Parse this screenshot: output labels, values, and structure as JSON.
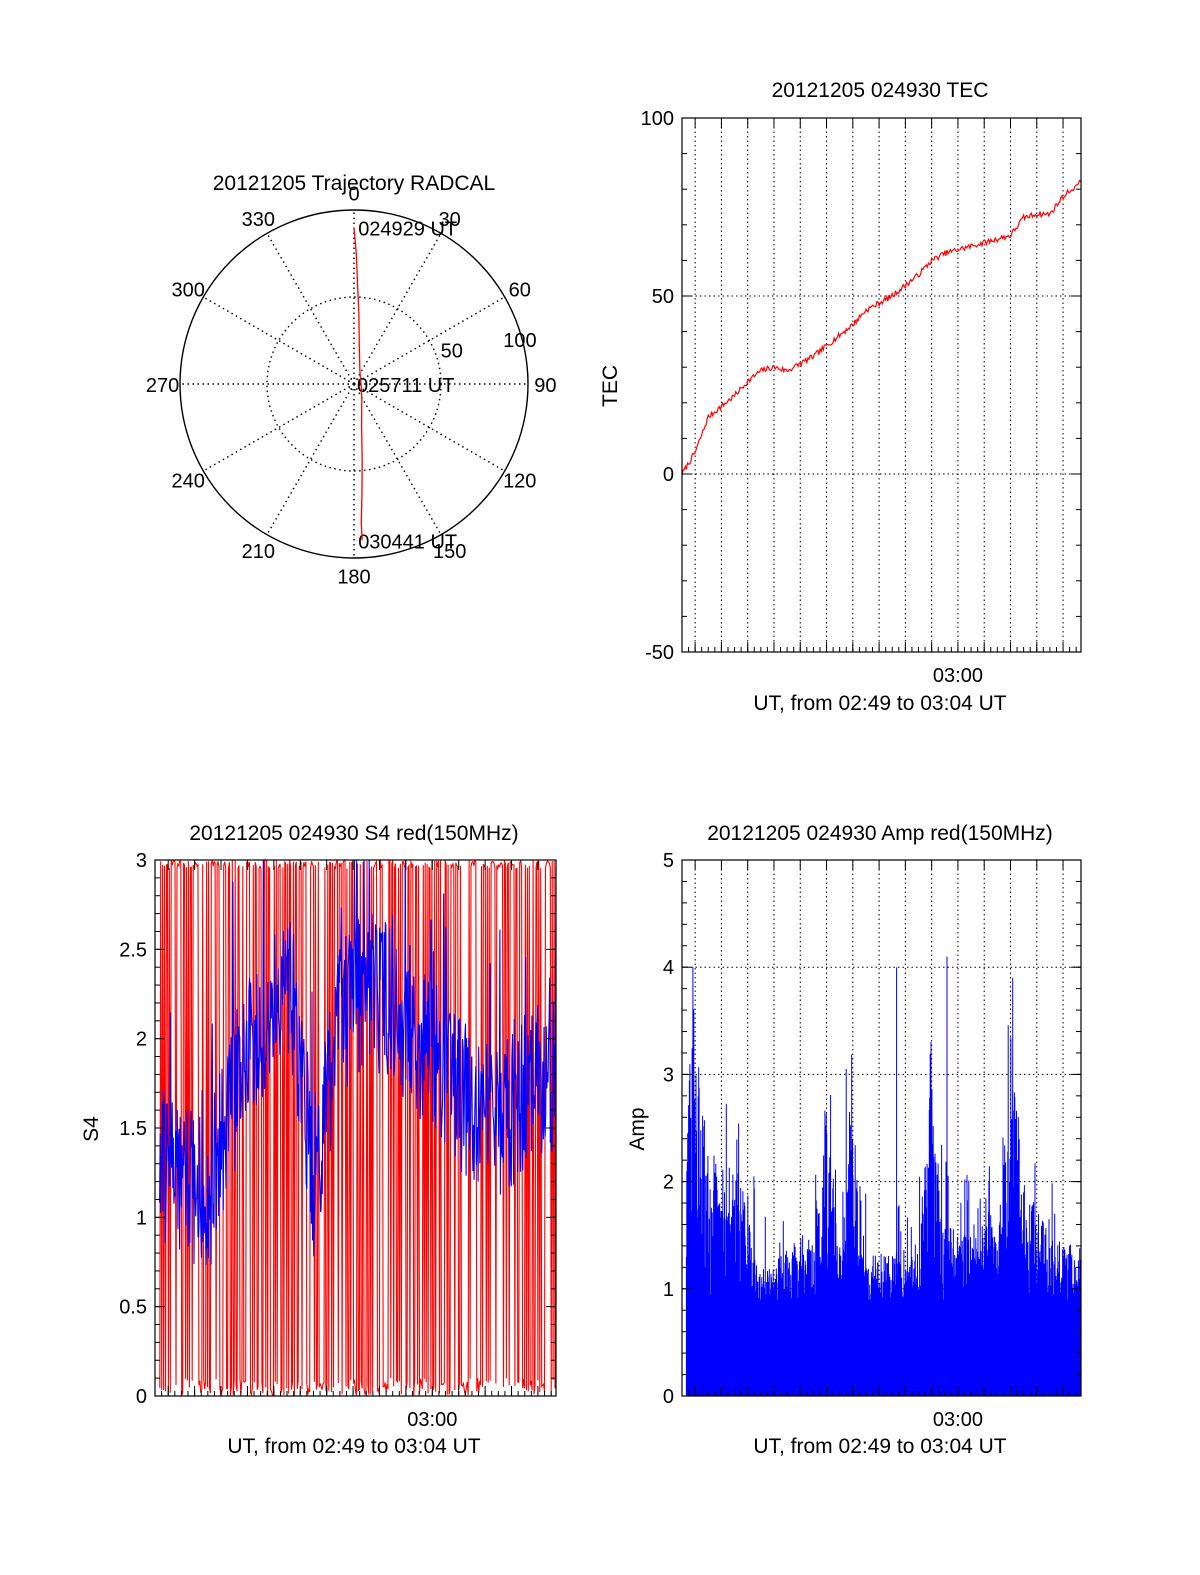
{
  "colors": {
    "red": "#ff0000",
    "blue": "#0000ff",
    "axis": "#000000",
    "grid": "#000000"
  },
  "chart_data": [
    {
      "id": "trajectory",
      "type": "polar",
      "title": "20121205 Trajectory RADCAL",
      "angle_labels": [
        "0",
        "30",
        "60",
        "90",
        "120",
        "150",
        "180",
        "210",
        "240",
        "270",
        "300",
        "330"
      ],
      "radius_labels": [
        "50",
        "100"
      ],
      "rlim": [
        0,
        100
      ],
      "grid": true,
      "series": [
        {
          "color": "#ff0000",
          "points": [
            [
              0,
              90
            ],
            [
              1,
              75
            ],
            [
              2,
              58
            ],
            [
              4,
              40
            ],
            [
              8,
              22
            ],
            [
              25,
              8
            ],
            [
              90,
              4
            ],
            [
              150,
              9
            ],
            [
              170,
              25
            ],
            [
              174,
              45
            ],
            [
              176,
              65
            ],
            [
              177,
              80
            ],
            [
              177,
              90
            ]
          ]
        }
      ],
      "annotations": [
        {
          "text": "024929 UT",
          "angle": 3,
          "r": 90
        },
        {
          "text": "025711 UT",
          "angle": 90,
          "r": 4
        },
        {
          "text": "030441 UT",
          "angle": 177,
          "r": 90
        }
      ]
    },
    {
      "id": "tec",
      "type": "line",
      "title": "20121205 024930 TEC",
      "ylabel": "TEC",
      "xlabel": "UT, from 02:49 to 03:04 UT",
      "xlim": [
        "02:49:30",
        "03:04:41"
      ],
      "ylim": [
        -50,
        100
      ],
      "yticks": [
        "-50",
        "0",
        "50",
        "100"
      ],
      "xtick_labels": [
        {
          "t": "03:00",
          "label": "03:00"
        }
      ],
      "grid": true,
      "series": [
        {
          "color": "#ff0000",
          "points": [
            [
              "02:49:30",
              0
            ],
            [
              "02:50:00",
              6
            ],
            [
              "02:50:30",
              16
            ],
            [
              "02:51:00",
              19
            ],
            [
              "02:51:30",
              22
            ],
            [
              "02:52:00",
              26
            ],
            [
              "02:52:30",
              29
            ],
            [
              "02:53:00",
              30
            ],
            [
              "02:53:30",
              29
            ],
            [
              "02:54:00",
              31
            ],
            [
              "02:54:30",
              33
            ],
            [
              "02:55:00",
              36
            ],
            [
              "02:55:30",
              39
            ],
            [
              "02:56:00",
              42
            ],
            [
              "02:56:30",
              46
            ],
            [
              "02:57:00",
              48
            ],
            [
              "02:57:30",
              50
            ],
            [
              "02:58:00",
              53
            ],
            [
              "02:58:30",
              56
            ],
            [
              "02:59:00",
              60
            ],
            [
              "02:59:30",
              62
            ],
            [
              "03:00:00",
              63
            ],
            [
              "03:00:30",
              64
            ],
            [
              "03:01:00",
              65
            ],
            [
              "03:01:30",
              66
            ],
            [
              "03:02:00",
              67
            ],
            [
              "03:02:30",
              72
            ],
            [
              "03:03:00",
              73
            ],
            [
              "03:03:30",
              73
            ],
            [
              "03:04:00",
              78
            ],
            [
              "03:04:41",
              82
            ]
          ]
        }
      ]
    },
    {
      "id": "s4",
      "type": "line",
      "title": "20121205 024930 S4 red(150MHz)",
      "ylabel": "S4",
      "xlabel": "UT, from 02:49 to 03:04 UT",
      "xlim": [
        "02:49:30",
        "03:04:41"
      ],
      "ylim": [
        0,
        3
      ],
      "yticks": [
        "0",
        "0.5",
        "1",
        "1.5",
        "2",
        "2.5",
        "3"
      ],
      "xtick_labels": [
        {
          "t": "03:00",
          "label": "03:00"
        }
      ],
      "grid": false,
      "series": [
        {
          "color": "#ff0000",
          "style": "noise",
          "min": 0,
          "max": 3
        },
        {
          "color": "#0000ff",
          "style": "noise",
          "envelope": [
            [
              "02:49:30",
              1.3
            ],
            [
              "02:50:30",
              1.2
            ],
            [
              "02:51:30",
              1.1
            ],
            [
              "02:52:30",
              1.7
            ],
            [
              "02:53:30",
              2.1
            ],
            [
              "02:54:30",
              2.4
            ],
            [
              "02:55:00",
              1.9
            ],
            [
              "02:55:30",
              1.2
            ],
            [
              "02:56:00",
              1.7
            ],
            [
              "02:56:30",
              2.1
            ],
            [
              "02:57:30",
              2.3
            ],
            [
              "02:58:30",
              2.2
            ],
            [
              "02:59:30",
              2.0
            ],
            [
              "03:00:30",
              1.8
            ],
            [
              "03:01:30",
              1.6
            ],
            [
              "03:02:30",
              1.5
            ],
            [
              "03:03:30",
              1.7
            ],
            [
              "03:04:41",
              1.8
            ]
          ]
        }
      ]
    },
    {
      "id": "amp",
      "type": "bar",
      "title": "20121205 024930 Amp red(150MHz)",
      "ylabel": "Amp",
      "xlabel": "UT, from 02:49 to 03:04 UT",
      "xlim": [
        "02:49:30",
        "03:04:41"
      ],
      "ylim": [
        0,
        5
      ],
      "yticks": [
        "0",
        "1",
        "2",
        "3",
        "4",
        "5"
      ],
      "xtick_labels": [
        {
          "t": "03:00",
          "label": "03:00"
        }
      ],
      "grid": true,
      "series": [
        {
          "color": "#0000ff",
          "style": "spikes",
          "envelope": [
            [
              "02:49:30",
              2.4
            ],
            [
              "02:50:00",
              3.2
            ],
            [
              "02:50:30",
              2.4
            ],
            [
              "02:51:30",
              2.1
            ],
            [
              "02:52:00",
              1.8
            ],
            [
              "02:52:30",
              1.1
            ],
            [
              "02:53:30",
              1.4
            ],
            [
              "02:54:30",
              1.5
            ],
            [
              "02:55:00",
              2.6
            ],
            [
              "02:55:30",
              1.5
            ],
            [
              "02:56:00",
              2.8
            ],
            [
              "02:56:30",
              1.3
            ],
            [
              "02:57:30",
              1.4
            ],
            [
              "02:58:00",
              1.2
            ],
            [
              "02:58:30",
              1.6
            ],
            [
              "02:59:00",
              3.0
            ],
            [
              "02:59:30",
              1.6
            ],
            [
              "03:00:30",
              1.5
            ],
            [
              "03:01:00",
              2.0
            ],
            [
              "03:01:30",
              1.4
            ],
            [
              "03:02:00",
              3.2
            ],
            [
              "03:02:30",
              2.0
            ],
            [
              "03:03:30",
              1.5
            ],
            [
              "03:04:41",
              1.4
            ]
          ],
          "peaks": [
            [
              "02:49:55",
              4.0
            ],
            [
              "02:55:45",
              3.05
            ],
            [
              "02:57:40",
              4.0
            ],
            [
              "02:59:35",
              4.1
            ],
            [
              "03:02:05",
              3.9
            ]
          ]
        }
      ]
    }
  ]
}
